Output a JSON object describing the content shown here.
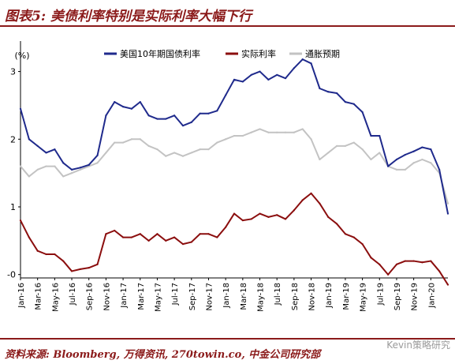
{
  "figure": {
    "title": "图表5: 美债利率特别是实际利率大幅下行",
    "source": "资料来源: Bloomberg, 万得资讯, 270towin.co, 中金公司研究部",
    "watermark": "Kevin策略研究"
  },
  "colors": {
    "accent": "#8b1a1a",
    "nominal": "#1f2a8c",
    "real": "#8b0e0e",
    "breakeven": "#c3c3c3"
  },
  "chart_data": {
    "type": "line",
    "title": "",
    "ylabel": "(%)",
    "xlabel": "",
    "ylim": [
      -0.05,
      3.45
    ],
    "yticks": [
      0,
      1,
      2,
      3
    ],
    "ytick_labels": [
      "-0",
      "1",
      "2",
      "3"
    ],
    "grid": false,
    "legend_position": "top",
    "xtick_labels": [
      "Jan-16",
      "Mar-16",
      "May-16",
      "Jul-16",
      "Sep-16",
      "Nov-16",
      "Jan-17",
      "Mar-17",
      "May-17",
      "Jul-17",
      "Sep-17",
      "Nov-17",
      "Jan-18",
      "Mar-18",
      "May-18",
      "Jul-18",
      "Sep-18",
      "Nov-18",
      "Jan-19",
      "Mar-19",
      "May-19",
      "Jul-19",
      "Sep-19",
      "Nov-19",
      "Jan-20"
    ],
    "x": [
      "2016-01",
      "2016-02",
      "2016-03",
      "2016-04",
      "2016-05",
      "2016-06",
      "2016-07",
      "2016-08",
      "2016-09",
      "2016-10",
      "2016-11",
      "2016-12",
      "2017-01",
      "2017-02",
      "2017-03",
      "2017-04",
      "2017-05",
      "2017-06",
      "2017-07",
      "2017-08",
      "2017-09",
      "2017-10",
      "2017-11",
      "2017-12",
      "2018-01",
      "2018-02",
      "2018-03",
      "2018-04",
      "2018-05",
      "2018-06",
      "2018-07",
      "2018-08",
      "2018-09",
      "2018-10",
      "2018-11",
      "2018-12",
      "2019-01",
      "2019-02",
      "2019-03",
      "2019-04",
      "2019-05",
      "2019-06",
      "2019-07",
      "2019-08",
      "2019-09",
      "2019-10",
      "2019-11",
      "2019-12",
      "2020-01",
      "2020-02",
      "2020-03"
    ],
    "series": [
      {
        "name": "美国10年期国债利率",
        "color": "#1f2a8c",
        "values": [
          2.45,
          2.0,
          1.9,
          1.8,
          1.85,
          1.65,
          1.55,
          1.58,
          1.62,
          1.76,
          2.35,
          2.55,
          2.48,
          2.45,
          2.55,
          2.35,
          2.3,
          2.3,
          2.35,
          2.2,
          2.25,
          2.38,
          2.38,
          2.42,
          2.65,
          2.88,
          2.85,
          2.95,
          3.0,
          2.88,
          2.95,
          2.9,
          3.05,
          3.18,
          3.12,
          2.75,
          2.7,
          2.68,
          2.55,
          2.52,
          2.4,
          2.05,
          2.05,
          1.6,
          1.7,
          1.77,
          1.82,
          1.88,
          1.85,
          1.55,
          0.9
        ]
      },
      {
        "name": "实际利率",
        "color": "#8b0e0e",
        "values": [
          0.8,
          0.55,
          0.35,
          0.3,
          0.3,
          0.2,
          0.05,
          0.08,
          0.1,
          0.15,
          0.6,
          0.65,
          0.55,
          0.55,
          0.6,
          0.5,
          0.6,
          0.5,
          0.55,
          0.45,
          0.48,
          0.6,
          0.6,
          0.55,
          0.7,
          0.9,
          0.8,
          0.82,
          0.9,
          0.85,
          0.88,
          0.82,
          0.95,
          1.1,
          1.2,
          1.05,
          0.85,
          0.75,
          0.6,
          0.55,
          0.45,
          0.25,
          0.15,
          0.0,
          0.15,
          0.2,
          0.2,
          0.18,
          0.2,
          0.05,
          -0.15
        ]
      },
      {
        "name": "通胀预期",
        "color": "#c3c3c3",
        "values": [
          1.6,
          1.45,
          1.55,
          1.6,
          1.6,
          1.45,
          1.5,
          1.55,
          1.6,
          1.65,
          1.8,
          1.95,
          1.95,
          2.0,
          2.0,
          1.9,
          1.85,
          1.75,
          1.8,
          1.75,
          1.8,
          1.85,
          1.85,
          1.95,
          2.0,
          2.05,
          2.05,
          2.1,
          2.15,
          2.1,
          2.1,
          2.1,
          2.1,
          2.15,
          2.0,
          1.7,
          1.8,
          1.9,
          1.9,
          1.95,
          1.85,
          1.7,
          1.8,
          1.6,
          1.55,
          1.55,
          1.65,
          1.7,
          1.65,
          1.5,
          1.05
        ]
      }
    ]
  }
}
